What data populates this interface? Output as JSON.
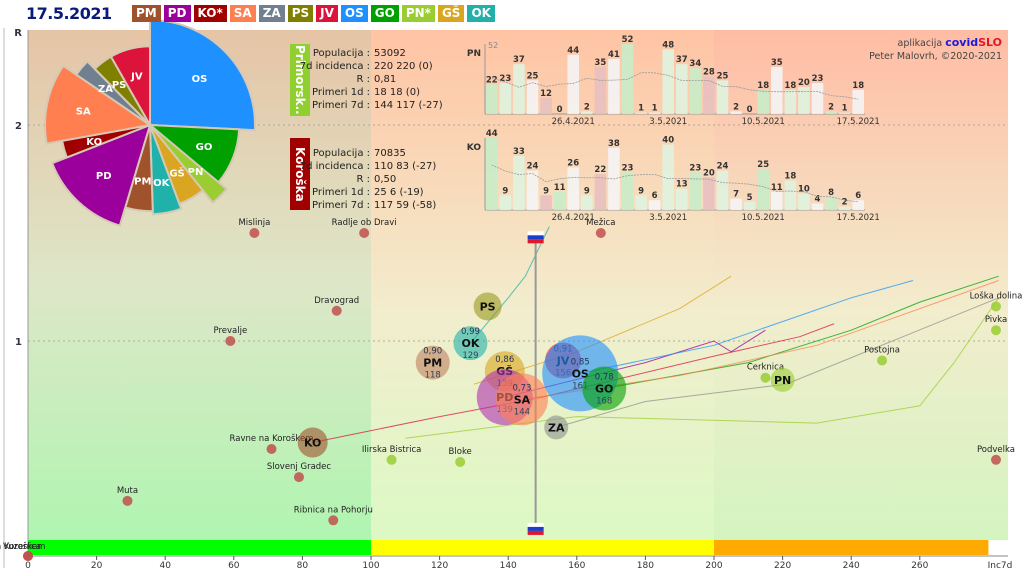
{
  "header": {
    "date": "17.5.2021",
    "legend": [
      {
        "code": "PM",
        "color": "#a0522d"
      },
      {
        "code": "PD",
        "color": "#9c009c"
      },
      {
        "code": "KO*",
        "color": "#a00000"
      },
      {
        "code": "SA",
        "color": "#ff7f50"
      },
      {
        "code": "ZA",
        "color": "#708090"
      },
      {
        "code": "PS",
        "color": "#808000"
      },
      {
        "code": "JV",
        "color": "#dc143c"
      },
      {
        "code": "OS",
        "color": "#1e90ff"
      },
      {
        "code": "GO",
        "color": "#00a000"
      },
      {
        "code": "PN*",
        "color": "#9acd32"
      },
      {
        "code": "GŠ",
        "color": "#daa520"
      },
      {
        "code": "OK",
        "color": "#20b2aa"
      }
    ]
  },
  "credit": {
    "prefix": "aplikacija",
    "brand_a": "covid",
    "brand_b": "SLO",
    "author": "Peter Malovrh, ©2020-2021"
  },
  "regions": [
    {
      "name": "Primorsk..",
      "code": "PN",
      "color": "#8fcf2f",
      "stats": [
        [
          "Populacija",
          "53092"
        ],
        [
          "7d incidenca",
          "220 220 (0)"
        ],
        [
          "R",
          "0,81"
        ],
        [
          "Primeri 1d",
          "18 18 (0)"
        ],
        [
          "Primeri 7d",
          "144 117 (-27)"
        ]
      ]
    },
    {
      "name": "Koroška",
      "code": "KO",
      "color": "#a00000",
      "stats": [
        [
          "Populacija",
          "70835"
        ],
        [
          "7d incidenca",
          "110 83 (-27)"
        ],
        [
          "R",
          "0,50"
        ],
        [
          "Primeri 1d",
          "25 6 (-19)"
        ],
        [
          "Primeri 7d",
          "117 59 (-58)"
        ]
      ]
    }
  ],
  "chart_data": [
    {
      "type": "scatter",
      "title": "",
      "xlabel": "Inc7d",
      "ylabel": "R",
      "xlim": [
        0,
        280
      ],
      "ylim": [
        0,
        2.35
      ],
      "x_ticks": [
        0,
        20,
        40,
        60,
        80,
        100,
        120,
        140,
        160,
        180,
        200,
        220,
        240,
        260
      ],
      "x_tick_labels": [
        "0",
        "20",
        "40",
        "60",
        "80",
        "100",
        "120",
        "140",
        "160",
        "180",
        "200",
        "220",
        "240",
        "260"
      ],
      "x_end_label": "Inc7d",
      "y_ticks": [
        1,
        2
      ],
      "y_tick_labels": [
        "1",
        "2"
      ],
      "zones": [
        {
          "from": 0,
          "to": 100,
          "color": "#00ff00"
        },
        {
          "from": 100,
          "to": 200,
          "color": "#ffff00"
        },
        {
          "from": 200,
          "to": 280,
          "color": "#ffaa00"
        }
      ],
      "regions": [
        {
          "code": "PM",
          "x": 118,
          "R": 0.9,
          "inc": "118",
          "r_label": "0,90",
          "color": "#c08060"
        },
        {
          "code": "OK",
          "x": 129,
          "R": 0.99,
          "inc": "129",
          "r_label": "0,99",
          "color": "#20b2aa"
        },
        {
          "code": "PS",
          "x": 134,
          "R": 1.16,
          "inc": "",
          "r_label": "",
          "color": "#9a9a20"
        },
        {
          "code": "GŠ",
          "x": 139,
          "R": 0.86,
          "inc": "139",
          "r_label": "0,86",
          "color": "#daa520"
        },
        {
          "code": "PD",
          "x": 139,
          "R": 0.74,
          "inc": "139",
          "r_label": "",
          "color": "#b030b0"
        },
        {
          "code": "SA",
          "x": 144,
          "R": 0.73,
          "inc": "144",
          "r_label": "0,73",
          "color": "#ff7f50"
        },
        {
          "code": "JV",
          "x": 156,
          "R": 0.91,
          "inc": "156",
          "r_label": "0,91",
          "color": "#dc143c"
        },
        {
          "code": "OS",
          "x": 161,
          "R": 0.85,
          "inc": "161",
          "r_label": "0,85",
          "color": "#1e90ff"
        },
        {
          "code": "GO",
          "x": 168,
          "R": 0.78,
          "inc": "168",
          "r_label": "0,78",
          "color": "#00a000"
        },
        {
          "code": "ZA",
          "x": 154,
          "R": 0.6,
          "inc": "",
          "r_label": "",
          "color": "#8c9090"
        },
        {
          "code": "KO",
          "x": 83,
          "R": 0.53,
          "inc": "",
          "r_label": "",
          "color": "#a0522d"
        },
        {
          "code": "PN",
          "x": 220,
          "R": 0.82,
          "inc": "",
          "r_label": "",
          "color": "#9acd32"
        }
      ],
      "municipalities": [
        {
          "name": "Mislinja",
          "x": 66,
          "R": 1.5,
          "color": "#c0504d"
        },
        {
          "name": "Radlje ob Dravi",
          "x": 98,
          "R": 1.5,
          "color": "#c0504d"
        },
        {
          "name": "Mežica",
          "x": 167,
          "R": 1.5,
          "color": "#c0504d"
        },
        {
          "name": "Dravograd",
          "x": 90,
          "R": 1.14,
          "color": "#c0504d"
        },
        {
          "name": "Prevalje",
          "x": 59,
          "R": 1.0,
          "color": "#c0504d"
        },
        {
          "name": "Ravne na Koroškem",
          "x": 71,
          "R": 0.5,
          "color": "#c0504d"
        },
        {
          "name": "Slovenj Gradec",
          "x": 79,
          "R": 0.37,
          "color": "#c0504d"
        },
        {
          "name": "Muta",
          "x": 29,
          "R": 0.26,
          "color": "#c0504d"
        },
        {
          "name": "Ribnica na Pohorju",
          "x": 89,
          "R": 0.17,
          "color": "#c0504d"
        },
        {
          "name": "Ilirska Bistrica",
          "x": 106,
          "R": 0.45,
          "color": "#9acd32"
        },
        {
          "name": "Bloke",
          "x": 126,
          "R": 0.44,
          "color": "#9acd32"
        },
        {
          "name": "Cerknica",
          "x": 215,
          "R": 0.83,
          "color": "#9acd32"
        },
        {
          "name": "Postojna",
          "x": 249,
          "R": 0.91,
          "color": "#9acd32"
        },
        {
          "name": "Loška dolina",
          "x": 283,
          "R": 1.16,
          "color": "#9acd32"
        },
        {
          "name": "Pivka",
          "x": 283,
          "R": 1.05,
          "color": "#9acd32"
        },
        {
          "name": "Podvelka",
          "x": 283,
          "R": 0.45,
          "color": "#c0504d"
        },
        {
          "name": "Vuzenica",
          "x": 0,
          "R": 0.0,
          "color": "#c0504d"
        },
        {
          "name": "na Koroškem",
          "x": 0,
          "R": 0.0,
          "color": "#c0504d"
        }
      ],
      "flag_marker": {
        "x": 148,
        "R_top": 1.48,
        "R_bottom": 0.13
      }
    },
    {
      "type": "bar",
      "title": "PN",
      "max_label": "52",
      "date_labels": [
        "26.4.2021",
        "3.5.2021",
        "10.5.2021",
        "17.5.2021"
      ],
      "values": [
        22,
        23,
        37,
        25,
        12,
        0,
        44,
        2,
        35,
        41,
        52,
        1,
        1,
        48,
        37,
        34,
        28,
        25,
        2,
        0,
        18,
        35,
        18,
        20,
        23,
        2,
        1,
        18
      ]
    },
    {
      "type": "bar",
      "title": "KO",
      "date_labels": [
        "26.4.2021",
        "3.5.2021",
        "10.5.2021",
        "17.5.2021"
      ],
      "values": [
        44,
        9,
        33,
        24,
        9,
        11,
        26,
        9,
        22,
        38,
        23,
        9,
        6,
        40,
        13,
        23,
        20,
        24,
        7,
        5,
        25,
        11,
        18,
        10,
        4,
        8,
        2,
        6
      ]
    },
    {
      "type": "pie",
      "title": "",
      "slices": [
        {
          "label": "OS",
          "value": 25,
          "color": "#1e90ff"
        },
        {
          "label": "GO",
          "value": 10,
          "color": "#00a000"
        },
        {
          "label": "PN",
          "value": 3,
          "color": "#9acd32"
        },
        {
          "label": "GŠ",
          "value": 5,
          "color": "#daa520"
        },
        {
          "label": "OK",
          "value": 5,
          "color": "#20b2aa"
        },
        {
          "label": "PM",
          "value": 5,
          "color": "#a0522d"
        },
        {
          "label": "PD",
          "value": 14,
          "color": "#9c009c"
        },
        {
          "label": "KO",
          "value": 3,
          "color": "#a00000"
        },
        {
          "label": "SA",
          "value": 12,
          "color": "#ff7f50"
        },
        {
          "label": "ZA",
          "value": 3,
          "color": "#708090"
        },
        {
          "label": "PS",
          "value": 4,
          "color": "#808000"
        },
        {
          "label": "JV",
          "value": 8,
          "color": "#dc143c"
        }
      ]
    }
  ]
}
